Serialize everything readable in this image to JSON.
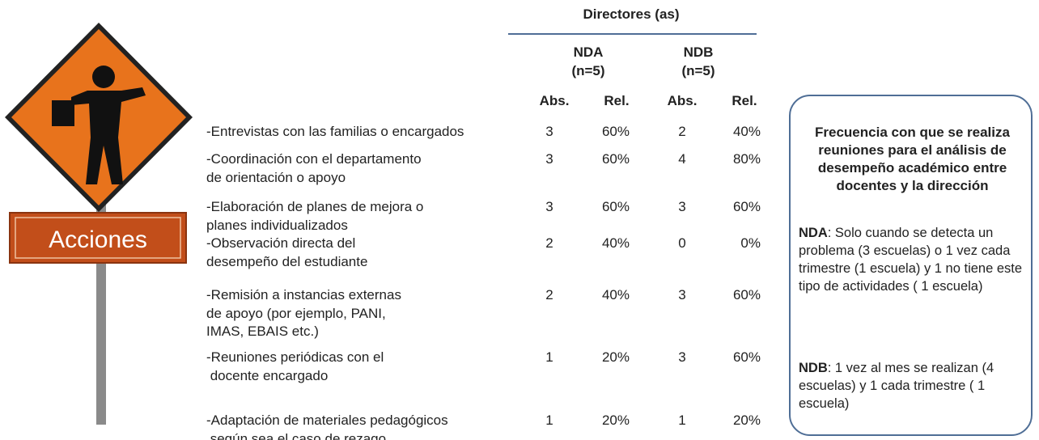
{
  "sign": {
    "label": "Acciones"
  },
  "table": {
    "header": "Directores (as)",
    "groups": [
      {
        "name": "NDA",
        "n": "(n=5)"
      },
      {
        "name": "NDB",
        "n": "(n=5)"
      }
    ],
    "columns": [
      "Abs.",
      "Rel.",
      "Abs.",
      "Rel."
    ],
    "rows": [
      {
        "lines": [
          "-Entrevistas con las familias o encargados"
        ],
        "values": [
          3,
          "60%",
          2,
          "40%"
        ]
      },
      {
        "lines": [
          "-Coordinación con el departamento",
          "de orientación o apoyo"
        ],
        "values": [
          3,
          "60%",
          4,
          "80%"
        ]
      },
      {
        "lines": [
          "-Elaboración de planes de mejora o",
          "planes individualizados"
        ],
        "values": [
          3,
          "60%",
          3,
          "60%"
        ]
      },
      {
        "lines": [
          "-Observación directa del",
          "desempeño del estudiante"
        ],
        "values": [
          2,
          "40%",
          0,
          "0%"
        ]
      },
      {
        "lines": [
          "-Remisión a instancias externas",
          "de apoyo (por ejemplo, PANI,",
          "IMAS, EBAIS etc.)"
        ],
        "values": [
          2,
          "40%",
          3,
          "60%"
        ]
      },
      {
        "lines": [
          "-Reuniones periódicas con el",
          " docente encargado"
        ],
        "values": [
          1,
          "20%",
          3,
          "60%"
        ]
      },
      {
        "lines": [
          "-Adaptación de materiales pedagógicos",
          " según sea el caso de rezago."
        ],
        "values": [
          1,
          "20%",
          1,
          "20%"
        ]
      }
    ]
  },
  "note": {
    "title": "Frecuencia con que se realiza reuniones para el análisis de desempeño académico entre docentes y la dirección",
    "paragraphs": [
      {
        "label": "NDA",
        "text": ": Solo cuando se detecta un problema (3 escuelas) o 1 vez cada trimestre (1 escuela) y 1 no tiene este tipo de actividades ( 1 escuela)"
      },
      {
        "label": "NDB",
        "text": ": 1 vez al mes se realizan (4 escuelas) y 1 cada trimestre ( 1 escuela)"
      }
    ]
  }
}
